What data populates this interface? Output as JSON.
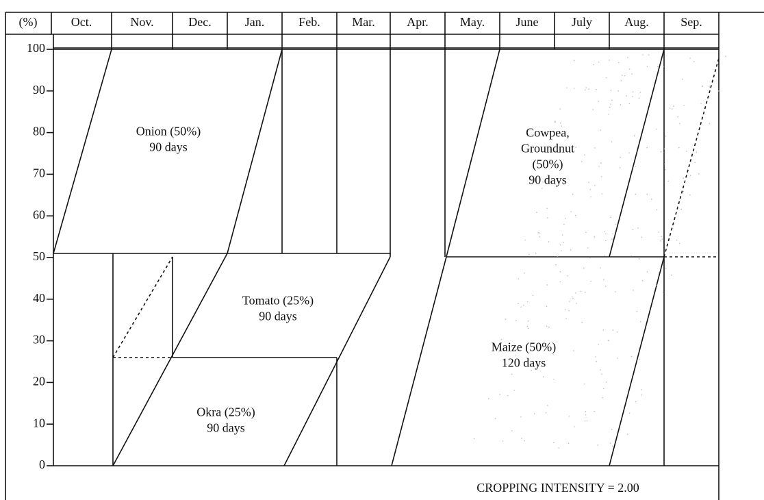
{
  "header": {
    "corner": "(%)",
    "months": [
      "Oct.",
      "Nov.",
      "Dec.",
      "Jan.",
      "Feb.",
      "Mar.",
      "Apr.",
      "May.",
      "June",
      "July",
      "Aug.",
      "Sep."
    ]
  },
  "yticks": [
    0,
    10,
    20,
    30,
    40,
    50,
    60,
    70,
    80,
    90,
    100
  ],
  "crops": [
    {
      "lines": [
        "Onion (50%)",
        "90 days"
      ]
    },
    {
      "lines": [
        "Tomato (25%)",
        "90 days"
      ]
    },
    {
      "lines": [
        "Okra (25%)",
        "90 days"
      ]
    },
    {
      "lines": [
        "Cowpea,",
        "Groundnut",
        "(50%)",
        "90 days"
      ]
    },
    {
      "lines": [
        "Maize (50%)",
        "120 days"
      ]
    }
  ],
  "footer": "CROPPING  INTENSITY = 2.00"
}
